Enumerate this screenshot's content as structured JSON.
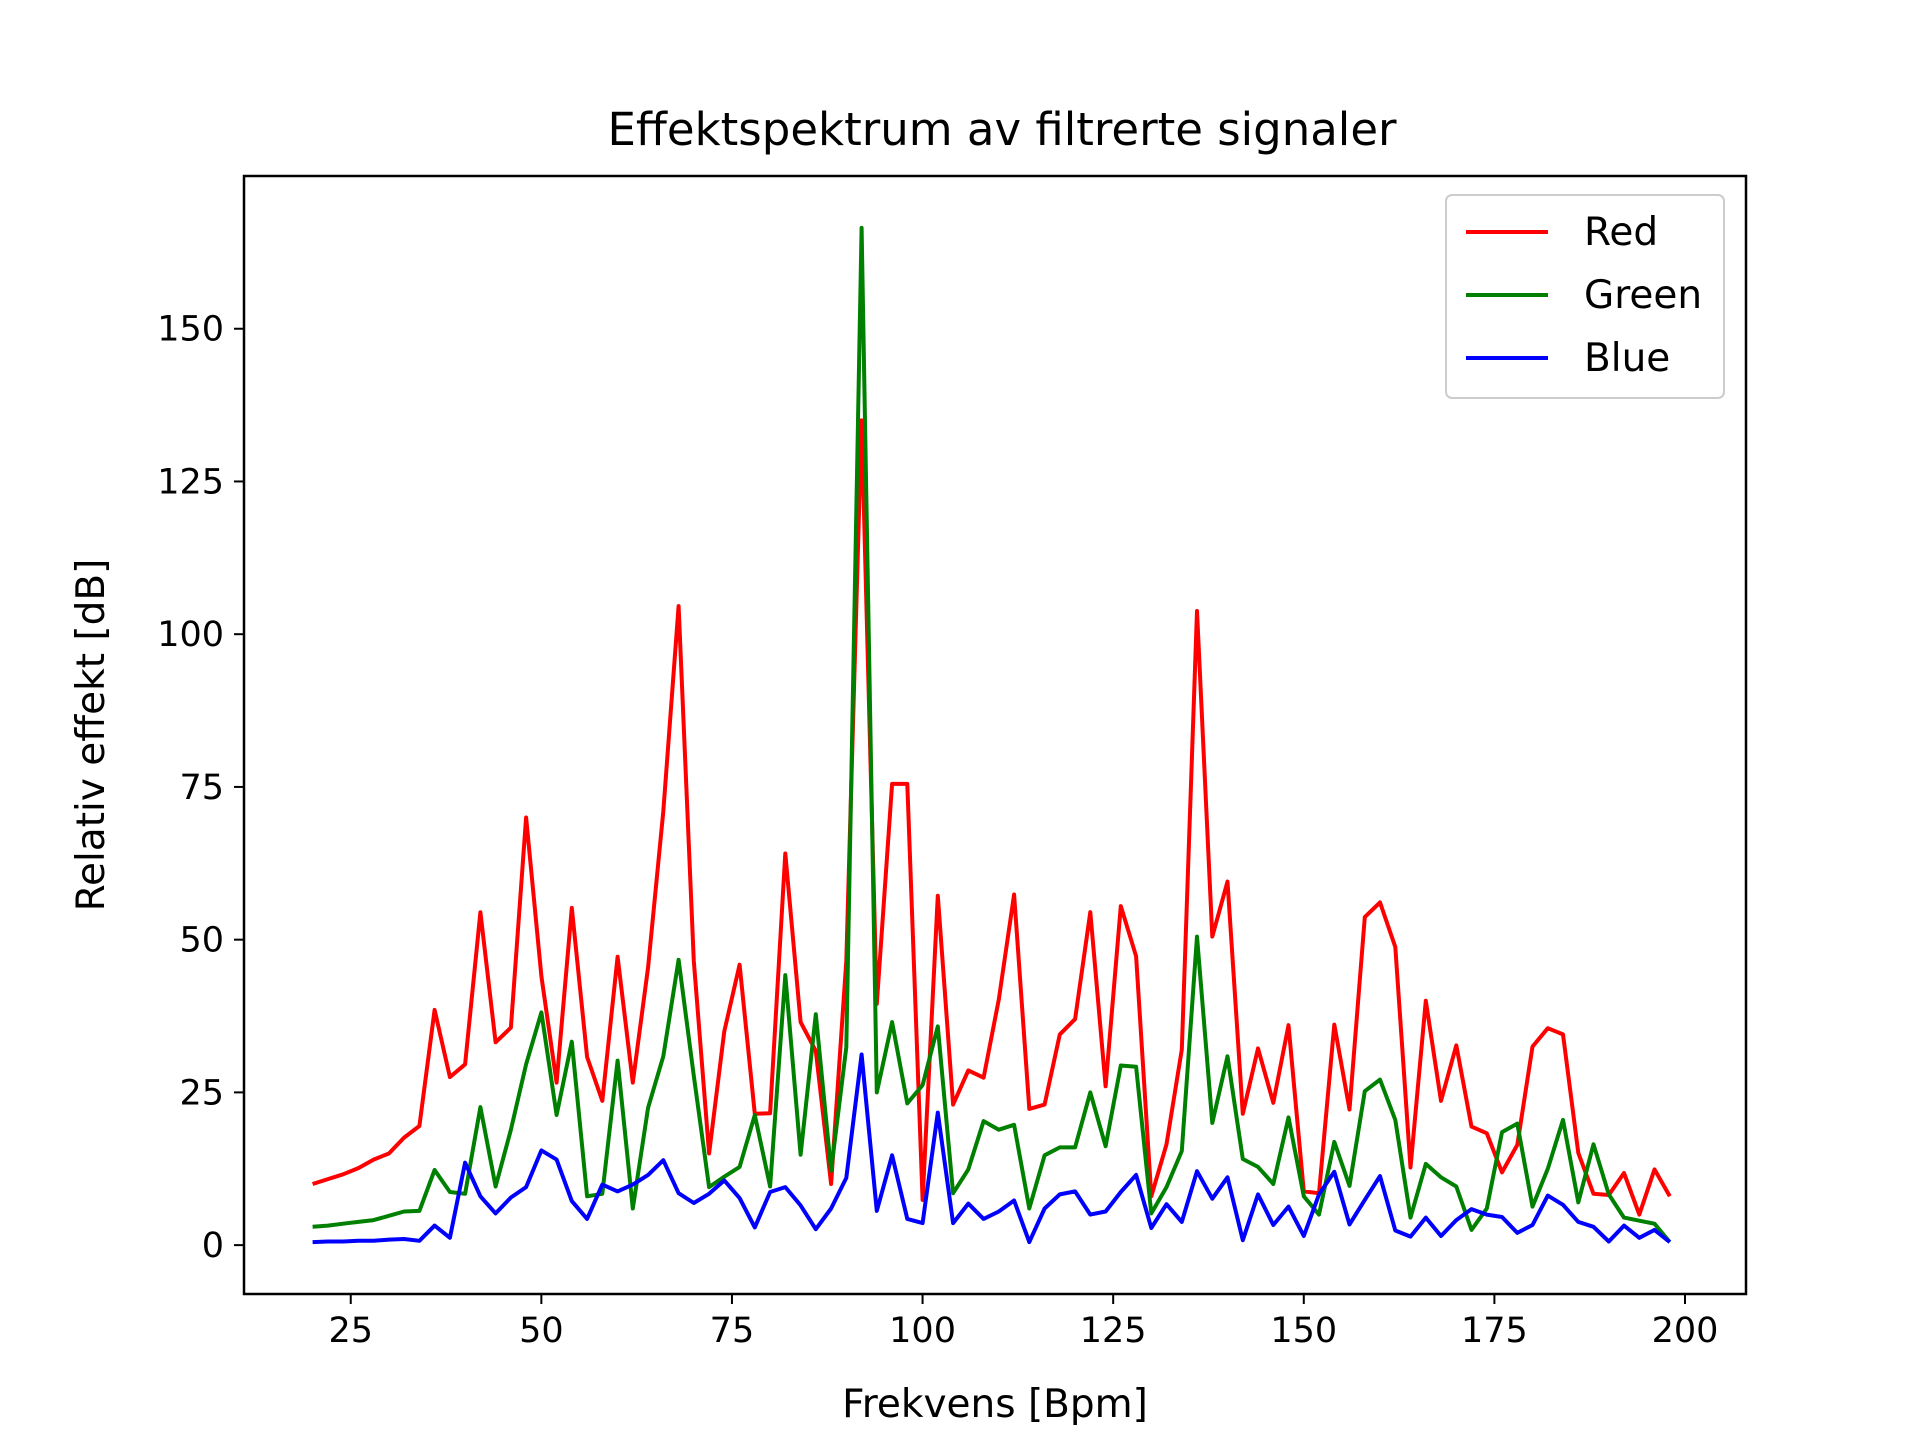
{
  "chart_data": {
    "type": "line",
    "title": "Effektspektrum av filtrerte signaler",
    "xlabel": "Frekvens [Bpm]",
    "ylabel": "Relativ effekt [dB]",
    "xlim": [
      11,
      208
    ],
    "ylim": [
      -8,
      175
    ],
    "xticks": [
      25,
      50,
      75,
      100,
      125,
      150,
      175,
      200
    ],
    "yticks": [
      0,
      25,
      50,
      75,
      100,
      125,
      150
    ],
    "grid": false,
    "legend_position": "upper right",
    "x": [
      20,
      22,
      24,
      26,
      28,
      30,
      32,
      34,
      36,
      38,
      40,
      42,
      44,
      46,
      48,
      50,
      52,
      54,
      56,
      58,
      60,
      62,
      64,
      66,
      68,
      70,
      72,
      74,
      76,
      78,
      80,
      82,
      84,
      86,
      88,
      90,
      92,
      94,
      96,
      98,
      100,
      102,
      104,
      106,
      108,
      110,
      112,
      114,
      116,
      118,
      120,
      122,
      124,
      126,
      128,
      130,
      132,
      134,
      136,
      138,
      140,
      142,
      144,
      146,
      148,
      150,
      152,
      154,
      156,
      158,
      160,
      162,
      164,
      166,
      168,
      170,
      172,
      174,
      176,
      178,
      180,
      182,
      184,
      186,
      188,
      190,
      192,
      194,
      196,
      198
    ],
    "series": [
      {
        "name": "Red",
        "color": "#ff0000",
        "values": [
          10,
          10.8,
          11.6,
          12.6,
          14,
          15,
          17.6,
          19.5,
          38.5,
          27.5,
          29.6,
          54.5,
          33.2,
          35.6,
          70,
          44,
          26.6,
          55.2,
          30.8,
          23.6,
          47.2,
          26.6,
          45.5,
          71,
          104.6,
          46.5,
          15,
          35,
          45.9,
          21.5,
          21.6,
          64.1,
          36.5,
          31.8,
          10,
          46.5,
          135,
          39.5,
          75.5,
          75.5,
          7.4,
          57.2,
          23,
          28.6,
          27.4,
          40.2,
          57.4,
          22.3,
          23,
          34.5,
          37,
          54.5,
          26,
          55.5,
          47.3,
          8,
          16.5,
          32,
          103.8,
          50.5,
          59.5,
          21.5,
          32.2,
          23.3,
          36,
          8.8,
          8.5,
          36.1,
          22.2,
          53.7,
          56.1,
          48.8,
          12.7,
          40,
          23.6,
          32.7,
          19.4,
          18.3,
          11.9,
          16.4,
          32.5,
          35.5,
          34.5,
          15.1,
          8.4,
          8.2,
          11.8,
          5,
          12.4,
          8
        ]
      },
      {
        "name": "Green",
        "color": "#008000",
        "values": [
          3,
          3.2,
          3.5,
          3.8,
          4.1,
          4.8,
          5.5,
          5.6,
          12.3,
          8.7,
          8.4,
          22.6,
          9.6,
          18.9,
          29.6,
          38.1,
          21.3,
          33.3,
          8,
          8.4,
          30.2,
          6,
          22.5,
          30.9,
          46.7,
          27.7,
          9.5,
          11.2,
          12.8,
          21.3,
          9.6,
          44.2,
          14.8,
          37.8,
          12.2,
          32.4,
          166.5,
          25,
          36.5,
          23.2,
          26.2,
          35.8,
          8.5,
          12.4,
          20.3,
          18.9,
          19.7,
          6,
          14.7,
          16,
          16,
          25,
          16.2,
          29.4,
          29.2,
          5.2,
          9.5,
          15.4,
          50.5,
          20,
          30.9,
          14.1,
          12.8,
          10,
          20.9,
          8,
          5,
          16.9,
          9.7,
          25.2,
          27.1,
          20.5,
          4.5,
          13.3,
          11.1,
          9.6,
          2.5,
          6,
          18.5,
          19.9,
          6.3,
          12.5,
          20.5,
          7,
          16.5,
          8.3,
          4.5,
          4,
          3.5,
          0.5
        ]
      },
      {
        "name": "Blue",
        "color": "#0000ff",
        "values": [
          0.5,
          0.6,
          0.6,
          0.7,
          0.7,
          0.9,
          1,
          0.7,
          3.2,
          1.2,
          13.5,
          8,
          5.2,
          7.8,
          9.5,
          15.5,
          14,
          7.2,
          4.3,
          9.9,
          8.8,
          9.9,
          11.5,
          13.9,
          8.5,
          6.9,
          8.4,
          10.6,
          7.7,
          2.9,
          8.7,
          9.5,
          6.5,
          2.6,
          6,
          11,
          31.2,
          5.6,
          14.7,
          4.3,
          3.6,
          21.7,
          3.6,
          6.8,
          4.3,
          5.5,
          7.3,
          0.5,
          6,
          8.3,
          8.8,
          5,
          5.5,
          8.7,
          11.5,
          2.8,
          6.7,
          3.8,
          12.1,
          7.6,
          11.1,
          0.8,
          8.3,
          3.3,
          6.3,
          1.5,
          8.3,
          12,
          3.4,
          7.4,
          11.3,
          2.4,
          1.4,
          4.5,
          1.5,
          4.1,
          5.9,
          5,
          4.6,
          2,
          3.3,
          8.1,
          6.6,
          3.8,
          3,
          0.6,
          3.2,
          1.2,
          2.5,
          0.5
        ]
      }
    ]
  }
}
